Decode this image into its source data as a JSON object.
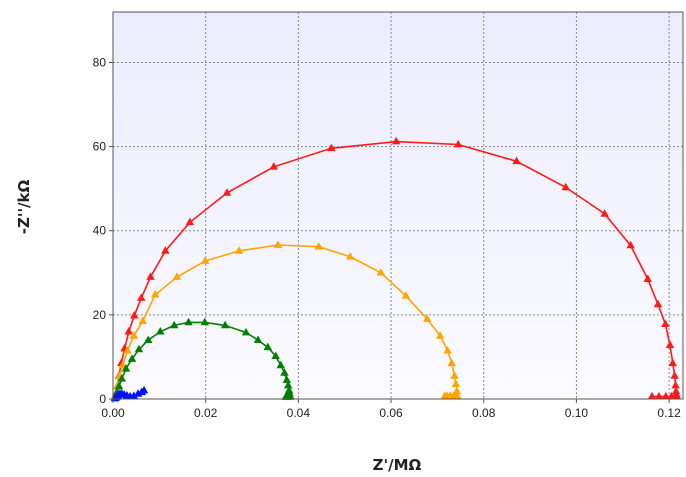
{
  "chart_data": {
    "type": "scatter",
    "title": "",
    "xlabel": "Z'/MΩ",
    "ylabel": "-Z''/kΩ",
    "xlim": [
      0,
      0.123
    ],
    "ylim": [
      0,
      92
    ],
    "xticks": [
      "0.00",
      "0.02",
      "0.04",
      "0.06",
      "0.08",
      "0.10",
      "0.12"
    ],
    "yticks": [
      "0",
      "20",
      "40",
      "60",
      "80"
    ],
    "grid": true,
    "legend": "none",
    "background": "#f1f1fd",
    "series": [
      {
        "color": "#ff1a1a",
        "x": [
          0.0006,
          0.0009,
          0.0013,
          0.0018,
          0.0025,
          0.0034,
          0.0046,
          0.0061,
          0.0081,
          0.0113,
          0.0166,
          0.0246,
          0.0347,
          0.0471,
          0.0611,
          0.0745,
          0.0871,
          0.0977,
          0.1061,
          0.1117,
          0.1154,
          0.1176,
          0.1192,
          0.1202,
          0.1208,
          0.1212,
          0.1214,
          0.1215,
          0.1216,
          0.1216,
          0.1213,
          0.1205,
          0.1193,
          0.1178,
          0.1163
        ],
        "y": [
          1.0,
          3.0,
          5.5,
          8.5,
          12.0,
          16.0,
          19.8,
          24.0,
          29.0,
          35.2,
          42.0,
          49.0,
          55.2,
          59.6,
          61.2,
          60.5,
          56.5,
          50.3,
          44.0,
          36.5,
          28.5,
          22.5,
          17.8,
          12.8,
          8.5,
          5.5,
          3.2,
          1.8,
          1.0,
          0.6,
          0.6,
          0.6,
          0.6,
          0.6,
          0.6
        ]
      },
      {
        "color": "#ffa500",
        "x": [
          0.0005,
          0.0009,
          0.0014,
          0.0021,
          0.0031,
          0.0045,
          0.0064,
          0.0091,
          0.0138,
          0.0199,
          0.0272,
          0.0356,
          0.0444,
          0.0512,
          0.0578,
          0.0632,
          0.0678,
          0.0706,
          0.0722,
          0.0731,
          0.0737,
          0.074,
          0.0742,
          0.0743,
          0.0741,
          0.0735,
          0.0728,
          0.0721,
          0.0716
        ],
        "y": [
          1.0,
          3.0,
          5.5,
          8.0,
          11.5,
          15.0,
          18.5,
          24.8,
          29.0,
          32.8,
          35.2,
          36.6,
          36.2,
          33.8,
          30.0,
          24.5,
          19.0,
          15.0,
          11.5,
          8.5,
          5.5,
          3.5,
          1.8,
          0.7,
          0.7,
          0.7,
          0.7,
          0.7,
          0.7
        ]
      },
      {
        "color": "#008000",
        "x": [
          0.0005,
          0.0008,
          0.0013,
          0.0019,
          0.0028,
          0.0041,
          0.0056,
          0.0076,
          0.0102,
          0.0132,
          0.0163,
          0.0198,
          0.0242,
          0.0287,
          0.0313,
          0.0334,
          0.0351,
          0.0362,
          0.037,
          0.0375,
          0.0378,
          0.038,
          0.0381,
          0.0382,
          0.0381,
          0.0378,
          0.0375,
          0.0373
        ],
        "y": [
          0.5,
          1.5,
          3.0,
          4.8,
          7.2,
          9.5,
          11.8,
          14.0,
          16.0,
          17.5,
          18.2,
          18.2,
          17.5,
          15.8,
          14.0,
          12.3,
          10.2,
          8.0,
          6.2,
          4.5,
          3.2,
          2.0,
          1.3,
          0.7,
          0.5,
          0.5,
          0.5,
          0.5
        ]
      },
      {
        "color": "#0010ff",
        "x": [
          0.0004,
          0.0006,
          0.0008,
          0.001,
          0.0012,
          0.0015,
          0.0019,
          0.0024,
          0.003,
          0.0037,
          0.0045,
          0.0054,
          0.0062,
          0.0067
        ],
        "y": [
          0.1,
          0.3,
          0.5,
          0.8,
          1.0,
          1.2,
          1.2,
          1.0,
          0.8,
          0.6,
          0.7,
          1.2,
          1.6,
          2.0
        ]
      }
    ]
  }
}
